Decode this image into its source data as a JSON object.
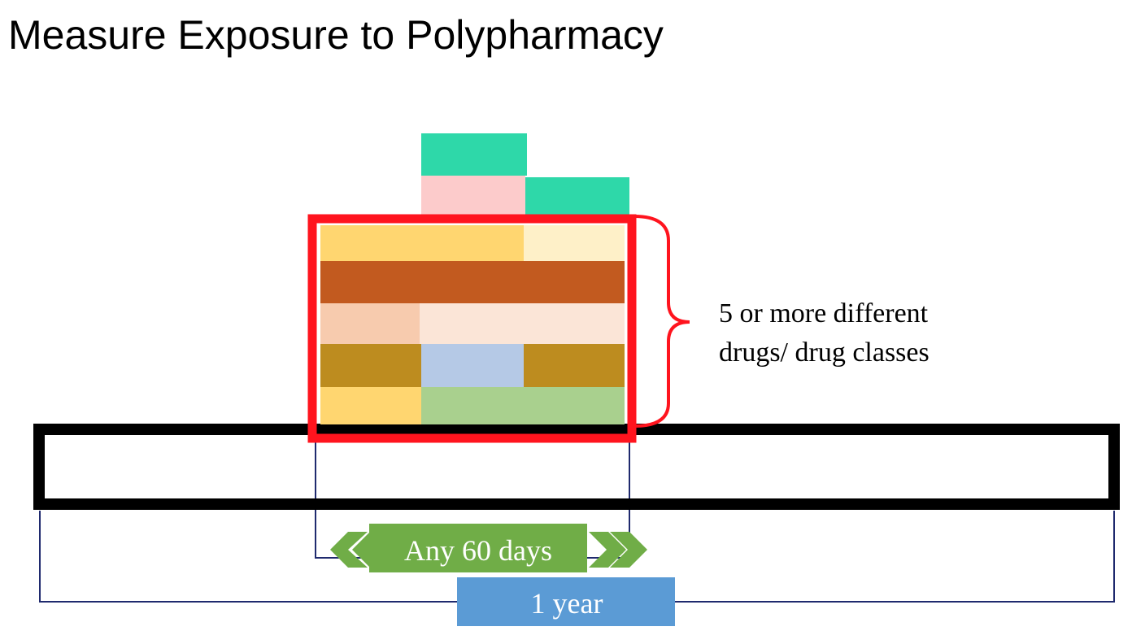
{
  "title": "Measure Exposure to Polypharmacy",
  "brace_label": {
    "line1": "5 or more different",
    "line2": "drugs/ drug classes"
  },
  "window_label": "Any 60 days",
  "year_label": "1 year",
  "colors": {
    "teal": "#2ED8A9",
    "pink": "#FCCBCB",
    "yellow": "#FFD670",
    "cream": "#FEF0C8",
    "rust": "#C25A1F",
    "peach": "#F7CBAE",
    "light_peach": "#FBE5D7",
    "ochre": "#BD8C1F",
    "light_blue": "#B5C9E6",
    "light_green": "#A9D08E",
    "red": "#FF141E",
    "green_label": "#70AD47",
    "blue_label": "#5B9BD5",
    "navy": "#1F2A6E"
  }
}
